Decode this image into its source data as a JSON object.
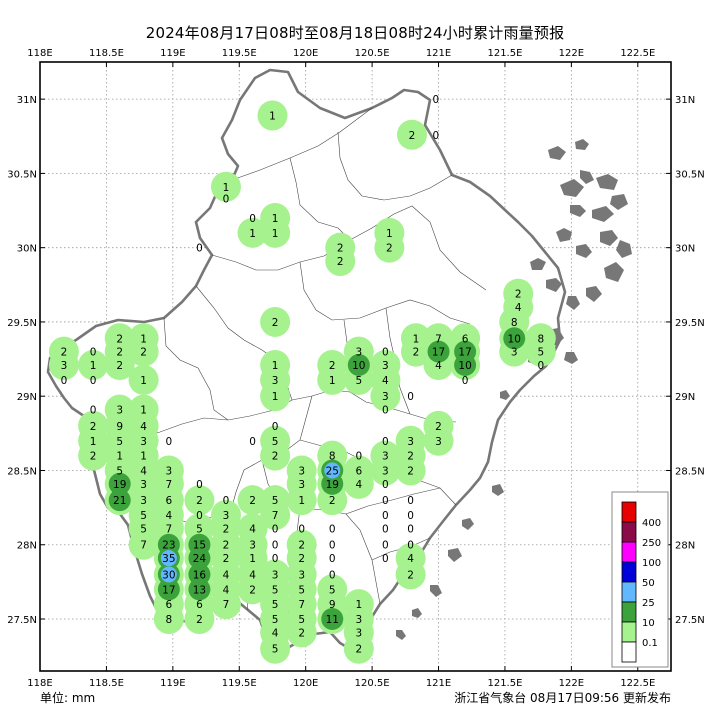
{
  "title": "2024年08月17日08时至08月18日08时24小时累计雨量预报",
  "unit_label": "单位: mm",
  "publisher": "浙江省气象台 08月17日09:56 更新发布",
  "axes": {
    "lon_ticks": [
      "118E",
      "118.5E",
      "119E",
      "119.5E",
      "120E",
      "120.5E",
      "121E",
      "121.5E",
      "122E",
      "122.5E"
    ],
    "lat_ticks": [
      "31N",
      "30.5N",
      "30N",
      "29.5N",
      "29N",
      "28.5N",
      "28N",
      "27.5N"
    ],
    "lon_range": [
      118,
      122.75
    ],
    "lat_range": [
      27.15,
      31.25
    ],
    "grid": "dotted"
  },
  "legend": {
    "placement": "bottom-right",
    "levels": [
      {
        "label": "400",
        "color": "#e60000"
      },
      {
        "label": "250",
        "color": "#8b0a48"
      },
      {
        "label": "100",
        "color": "#ff00ff"
      },
      {
        "label": "50",
        "color": "#0000d8"
      },
      {
        "label": "25",
        "color": "#61b8ff"
      },
      {
        "label": "10",
        "color": "#3ca33c"
      },
      {
        "label": "0.1",
        "color": "#a6f28f"
      },
      {
        "label": "",
        "color": "#ffffff"
      }
    ]
  },
  "map_colors": {
    "rain_light": "#a6f28f",
    "rain_moderate": "#3ca33c",
    "rain_heavy": "#61b8ff",
    "rain_storm": "#0000d8",
    "coast": "#777777"
  },
  "chart_data": {
    "type": "map",
    "title": "2024年08月17日08时至08月18日08时24小时累计雨量预报",
    "station_values": [
      {
        "lon": 119.75,
        "lat": 30.89,
        "value": "1"
      },
      {
        "lon": 120.8,
        "lat": 30.76,
        "value": "2"
      },
      {
        "lon": 120.98,
        "lat": 30.76,
        "value": "0"
      },
      {
        "lon": 120.98,
        "lat": 31.0,
        "value": "0"
      },
      {
        "lon": 119.4,
        "lat": 30.41,
        "value": "1"
      },
      {
        "lon": 119.4,
        "lat": 30.33,
        "value": "0"
      },
      {
        "lon": 119.6,
        "lat": 30.2,
        "value": "0"
      },
      {
        "lon": 119.77,
        "lat": 30.2,
        "value": "1"
      },
      {
        "lon": 119.6,
        "lat": 30.1,
        "value": "1"
      },
      {
        "lon": 119.77,
        "lat": 30.1,
        "value": "1"
      },
      {
        "lon": 120.26,
        "lat": 30.0,
        "value": "2"
      },
      {
        "lon": 120.26,
        "lat": 29.91,
        "value": "2"
      },
      {
        "lon": 120.63,
        "lat": 30.1,
        "value": "1"
      },
      {
        "lon": 120.63,
        "lat": 30.0,
        "value": "2"
      },
      {
        "lon": 119.2,
        "lat": 30.0,
        "value": "0"
      },
      {
        "lon": 121.6,
        "lat": 29.69,
        "value": "2"
      },
      {
        "lon": 121.6,
        "lat": 29.6,
        "value": "4"
      },
      {
        "lon": 121.57,
        "lat": 29.5,
        "value": "8"
      },
      {
        "lon": 121.57,
        "lat": 29.39,
        "value": "10"
      },
      {
        "lon": 121.77,
        "lat": 29.39,
        "value": "8"
      },
      {
        "lon": 121.57,
        "lat": 29.3,
        "value": "3"
      },
      {
        "lon": 121.77,
        "lat": 29.3,
        "value": "5"
      },
      {
        "lon": 121.77,
        "lat": 29.21,
        "value": "0"
      },
      {
        "lon": 119.77,
        "lat": 29.5,
        "value": "2"
      },
      {
        "lon": 118.6,
        "lat": 29.39,
        "value": "2"
      },
      {
        "lon": 118.78,
        "lat": 29.39,
        "value": "1"
      },
      {
        "lon": 118.18,
        "lat": 29.3,
        "value": "2"
      },
      {
        "lon": 118.4,
        "lat": 29.3,
        "value": "0"
      },
      {
        "lon": 118.6,
        "lat": 29.3,
        "value": "2"
      },
      {
        "lon": 118.78,
        "lat": 29.3,
        "value": "2"
      },
      {
        "lon": 118.18,
        "lat": 29.21,
        "value": "3"
      },
      {
        "lon": 118.4,
        "lat": 29.21,
        "value": "1"
      },
      {
        "lon": 118.6,
        "lat": 29.21,
        "value": "2"
      },
      {
        "lon": 118.18,
        "lat": 29.11,
        "value": "0"
      },
      {
        "lon": 118.4,
        "lat": 29.11,
        "value": "0"
      },
      {
        "lon": 118.78,
        "lat": 29.11,
        "value": "1"
      },
      {
        "lon": 119.77,
        "lat": 29.21,
        "value": "1"
      },
      {
        "lon": 119.77,
        "lat": 29.11,
        "value": "3"
      },
      {
        "lon": 119.77,
        "lat": 29.0,
        "value": "1"
      },
      {
        "lon": 120.4,
        "lat": 29.3,
        "value": "3"
      },
      {
        "lon": 120.6,
        "lat": 29.3,
        "value": "0"
      },
      {
        "lon": 120.2,
        "lat": 29.21,
        "value": "2"
      },
      {
        "lon": 120.4,
        "lat": 29.21,
        "value": "10"
      },
      {
        "lon": 120.6,
        "lat": 29.21,
        "value": "3"
      },
      {
        "lon": 120.2,
        "lat": 29.11,
        "value": "1"
      },
      {
        "lon": 120.4,
        "lat": 29.11,
        "value": "5"
      },
      {
        "lon": 120.6,
        "lat": 29.11,
        "value": "4"
      },
      {
        "lon": 120.6,
        "lat": 29.0,
        "value": "3"
      },
      {
        "lon": 120.6,
        "lat": 28.91,
        "value": "0"
      },
      {
        "lon": 120.79,
        "lat": 29.0,
        "value": "0"
      },
      {
        "lon": 120.83,
        "lat": 29.39,
        "value": "1"
      },
      {
        "lon": 121.0,
        "lat": 29.39,
        "value": "7"
      },
      {
        "lon": 121.2,
        "lat": 29.39,
        "value": "6"
      },
      {
        "lon": 120.83,
        "lat": 29.3,
        "value": "2"
      },
      {
        "lon": 121.0,
        "lat": 29.3,
        "value": "17"
      },
      {
        "lon": 121.2,
        "lat": 29.3,
        "value": "17"
      },
      {
        "lon": 121.0,
        "lat": 29.21,
        "value": "4"
      },
      {
        "lon": 121.2,
        "lat": 29.21,
        "value": "10"
      },
      {
        "lon": 121.2,
        "lat": 29.11,
        "value": "0"
      },
      {
        "lon": 118.4,
        "lat": 28.91,
        "value": "0"
      },
      {
        "lon": 118.6,
        "lat": 28.91,
        "value": "3"
      },
      {
        "lon": 118.78,
        "lat": 28.91,
        "value": "1"
      },
      {
        "lon": 118.4,
        "lat": 28.8,
        "value": "2"
      },
      {
        "lon": 118.6,
        "lat": 28.8,
        "value": "9"
      },
      {
        "lon": 118.78,
        "lat": 28.8,
        "value": "4"
      },
      {
        "lon": 118.4,
        "lat": 28.7,
        "value": "1"
      },
      {
        "lon": 118.6,
        "lat": 28.7,
        "value": "5"
      },
      {
        "lon": 118.78,
        "lat": 28.7,
        "value": "3"
      },
      {
        "lon": 118.97,
        "lat": 28.7,
        "value": "0"
      },
      {
        "lon": 118.4,
        "lat": 28.6,
        "value": "2"
      },
      {
        "lon": 118.6,
        "lat": 28.6,
        "value": "1"
      },
      {
        "lon": 118.78,
        "lat": 28.6,
        "value": "1"
      },
      {
        "lon": 118.6,
        "lat": 28.5,
        "value": "5"
      },
      {
        "lon": 118.78,
        "lat": 28.5,
        "value": "4"
      },
      {
        "lon": 118.97,
        "lat": 28.5,
        "value": "3"
      },
      {
        "lon": 118.6,
        "lat": 28.41,
        "value": "19"
      },
      {
        "lon": 118.78,
        "lat": 28.41,
        "value": "3"
      },
      {
        "lon": 118.97,
        "lat": 28.41,
        "value": "7"
      },
      {
        "lon": 119.2,
        "lat": 28.41,
        "value": "0"
      },
      {
        "lon": 118.6,
        "lat": 28.3,
        "value": "21"
      },
      {
        "lon": 118.78,
        "lat": 28.3,
        "value": "3"
      },
      {
        "lon": 118.97,
        "lat": 28.3,
        "value": "6"
      },
      {
        "lon": 119.2,
        "lat": 28.3,
        "value": "2"
      },
      {
        "lon": 119.4,
        "lat": 28.3,
        "value": "0"
      },
      {
        "lon": 119.6,
        "lat": 28.3,
        "value": "2"
      },
      {
        "lon": 119.77,
        "lat": 28.3,
        "value": "5"
      },
      {
        "lon": 118.78,
        "lat": 28.2,
        "value": "5"
      },
      {
        "lon": 118.97,
        "lat": 28.2,
        "value": "4"
      },
      {
        "lon": 119.2,
        "lat": 28.2,
        "value": "0"
      },
      {
        "lon": 119.4,
        "lat": 28.2,
        "value": "3"
      },
      {
        "lon": 119.77,
        "lat": 28.2,
        "value": "7"
      },
      {
        "lon": 118.78,
        "lat": 28.11,
        "value": "5"
      },
      {
        "lon": 118.97,
        "lat": 28.11,
        "value": "7"
      },
      {
        "lon": 119.2,
        "lat": 28.11,
        "value": "5"
      },
      {
        "lon": 119.4,
        "lat": 28.11,
        "value": "2"
      },
      {
        "lon": 119.6,
        "lat": 28.11,
        "value": "4"
      },
      {
        "lon": 119.77,
        "lat": 28.11,
        "value": "0"
      },
      {
        "lon": 119.97,
        "lat": 28.11,
        "value": "0"
      },
      {
        "lon": 120.2,
        "lat": 28.11,
        "value": "0"
      },
      {
        "lon": 118.78,
        "lat": 28.0,
        "value": "7"
      },
      {
        "lon": 118.97,
        "lat": 28.0,
        "value": "23"
      },
      {
        "lon": 119.2,
        "lat": 28.0,
        "value": "15"
      },
      {
        "lon": 119.4,
        "lat": 28.0,
        "value": "2"
      },
      {
        "lon": 119.6,
        "lat": 28.0,
        "value": "3"
      },
      {
        "lon": 119.77,
        "lat": 28.0,
        "value": "0"
      },
      {
        "lon": 119.97,
        "lat": 28.0,
        "value": "2"
      },
      {
        "lon": 120.2,
        "lat": 28.0,
        "value": "0"
      },
      {
        "lon": 118.97,
        "lat": 27.91,
        "value": "35"
      },
      {
        "lon": 119.2,
        "lat": 27.91,
        "value": "24"
      },
      {
        "lon": 119.4,
        "lat": 27.91,
        "value": "2"
      },
      {
        "lon": 119.6,
        "lat": 27.91,
        "value": "1"
      },
      {
        "lon": 119.77,
        "lat": 27.91,
        "value": "0"
      },
      {
        "lon": 119.97,
        "lat": 27.91,
        "value": "2"
      },
      {
        "lon": 120.2,
        "lat": 27.91,
        "value": "0"
      },
      {
        "lon": 118.97,
        "lat": 27.8,
        "value": "30"
      },
      {
        "lon": 119.2,
        "lat": 27.8,
        "value": "16"
      },
      {
        "lon": 119.4,
        "lat": 27.8,
        "value": "4"
      },
      {
        "lon": 119.6,
        "lat": 27.8,
        "value": "4"
      },
      {
        "lon": 119.77,
        "lat": 27.8,
        "value": "3"
      },
      {
        "lon": 119.97,
        "lat": 27.8,
        "value": "3"
      },
      {
        "lon": 120.2,
        "lat": 27.8,
        "value": "0"
      },
      {
        "lon": 118.97,
        "lat": 27.7,
        "value": "17"
      },
      {
        "lon": 119.2,
        "lat": 27.7,
        "value": "13"
      },
      {
        "lon": 119.4,
        "lat": 27.7,
        "value": "4"
      },
      {
        "lon": 119.6,
        "lat": 27.7,
        "value": "2"
      },
      {
        "lon": 119.77,
        "lat": 27.7,
        "value": "5"
      },
      {
        "lon": 119.97,
        "lat": 27.7,
        "value": "5"
      },
      {
        "lon": 120.2,
        "lat": 27.7,
        "value": "5"
      },
      {
        "lon": 118.97,
        "lat": 27.6,
        "value": "6"
      },
      {
        "lon": 119.2,
        "lat": 27.6,
        "value": "6"
      },
      {
        "lon": 119.4,
        "lat": 27.6,
        "value": "7"
      },
      {
        "lon": 119.77,
        "lat": 27.6,
        "value": "5"
      },
      {
        "lon": 119.97,
        "lat": 27.6,
        "value": "7"
      },
      {
        "lon": 120.2,
        "lat": 27.6,
        "value": "9"
      },
      {
        "lon": 120.4,
        "lat": 27.6,
        "value": "1"
      },
      {
        "lon": 118.97,
        "lat": 27.5,
        "value": "8"
      },
      {
        "lon": 119.2,
        "lat": 27.5,
        "value": "2"
      },
      {
        "lon": 119.77,
        "lat": 27.5,
        "value": "5"
      },
      {
        "lon": 119.97,
        "lat": 27.5,
        "value": "5"
      },
      {
        "lon": 120.2,
        "lat": 27.5,
        "value": "11"
      },
      {
        "lon": 120.4,
        "lat": 27.5,
        "value": "3"
      },
      {
        "lon": 119.77,
        "lat": 27.41,
        "value": "4"
      },
      {
        "lon": 119.97,
        "lat": 27.41,
        "value": "2"
      },
      {
        "lon": 120.4,
        "lat": 27.41,
        "value": "3"
      },
      {
        "lon": 119.77,
        "lat": 27.3,
        "value": "5"
      },
      {
        "lon": 120.4,
        "lat": 27.3,
        "value": "2"
      },
      {
        "lon": 119.6,
        "lat": 28.7,
        "value": "0"
      },
      {
        "lon": 119.77,
        "lat": 28.7,
        "value": "5"
      },
      {
        "lon": 119.77,
        "lat": 28.8,
        "value": "0"
      },
      {
        "lon": 119.77,
        "lat": 28.6,
        "value": "2"
      },
      {
        "lon": 120.2,
        "lat": 28.6,
        "value": "8"
      },
      {
        "lon": 120.4,
        "lat": 28.6,
        "value": "0"
      },
      {
        "lon": 120.6,
        "lat": 28.6,
        "value": "3"
      },
      {
        "lon": 120.79,
        "lat": 28.6,
        "value": "2"
      },
      {
        "lon": 119.97,
        "lat": 28.5,
        "value": "3"
      },
      {
        "lon": 120.2,
        "lat": 28.5,
        "value": "25"
      },
      {
        "lon": 120.4,
        "lat": 28.5,
        "value": "6"
      },
      {
        "lon": 120.6,
        "lat": 28.5,
        "value": "3"
      },
      {
        "lon": 120.79,
        "lat": 28.5,
        "value": "2"
      },
      {
        "lon": 119.97,
        "lat": 28.41,
        "value": "3"
      },
      {
        "lon": 120.2,
        "lat": 28.41,
        "value": "19"
      },
      {
        "lon": 120.4,
        "lat": 28.41,
        "value": "4"
      },
      {
        "lon": 120.6,
        "lat": 28.41,
        "value": "0"
      },
      {
        "lon": 119.97,
        "lat": 28.3,
        "value": "1"
      },
      {
        "lon": 120.2,
        "lat": 28.3,
        "value": "2"
      },
      {
        "lon": 120.6,
        "lat": 28.3,
        "value": "0"
      },
      {
        "lon": 120.6,
        "lat": 28.7,
        "value": "0"
      },
      {
        "lon": 120.79,
        "lat": 28.7,
        "value": "3"
      },
      {
        "lon": 121.0,
        "lat": 28.7,
        "value": "3"
      },
      {
        "lon": 121.0,
        "lat": 28.8,
        "value": "2"
      },
      {
        "lon": 120.79,
        "lat": 28.3,
        "value": "0"
      },
      {
        "lon": 120.6,
        "lat": 28.2,
        "value": "0"
      },
      {
        "lon": 120.79,
        "lat": 28.2,
        "value": "0"
      },
      {
        "lon": 120.6,
        "lat": 28.11,
        "value": "0"
      },
      {
        "lon": 120.79,
        "lat": 28.11,
        "value": "0"
      },
      {
        "lon": 120.6,
        "lat": 28.0,
        "value": "0"
      },
      {
        "lon": 120.79,
        "lat": 28.0,
        "value": "0"
      },
      {
        "lon": 120.6,
        "lat": 27.91,
        "value": "0"
      },
      {
        "lon": 120.79,
        "lat": 27.91,
        "value": "4"
      },
      {
        "lon": 120.79,
        "lat": 27.8,
        "value": "2"
      }
    ]
  }
}
